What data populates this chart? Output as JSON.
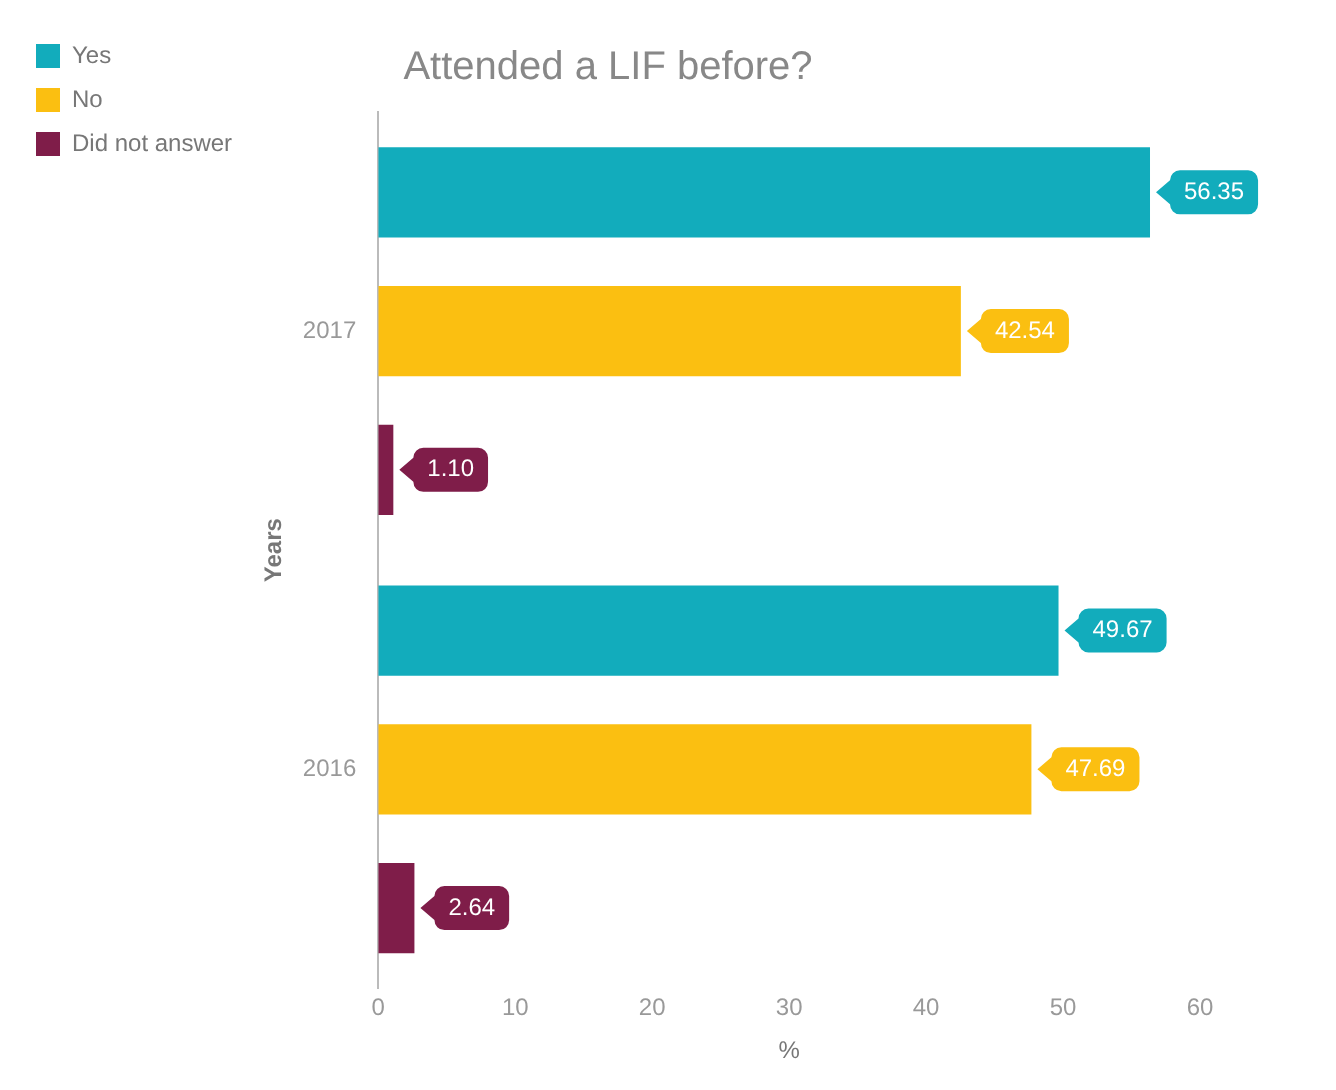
{
  "chart_data": {
    "type": "bar",
    "orientation": "horizontal",
    "title": "Attended a LIF before?",
    "xlabel": "%",
    "ylabel": "Years",
    "categories": [
      "2017",
      "2016"
    ],
    "series": [
      {
        "name": "Yes",
        "color": "#12acbc",
        "values": [
          56.35,
          49.67
        ]
      },
      {
        "name": "No",
        "color": "#fbbf11",
        "values": [
          42.54,
          47.69
        ]
      },
      {
        "name": "Did not answer",
        "color": "#7f1d49",
        "values": [
          1.1,
          2.64
        ]
      }
    ],
    "value_labels": [
      [
        "56.35",
        "49.67"
      ],
      [
        "42.54",
        "47.69"
      ],
      [
        "1.10",
        "2.64"
      ]
    ],
    "xlim": [
      0,
      60
    ],
    "xticks": [
      0,
      10,
      20,
      30,
      40,
      50,
      60
    ],
    "grid": false,
    "legend": "top left"
  }
}
